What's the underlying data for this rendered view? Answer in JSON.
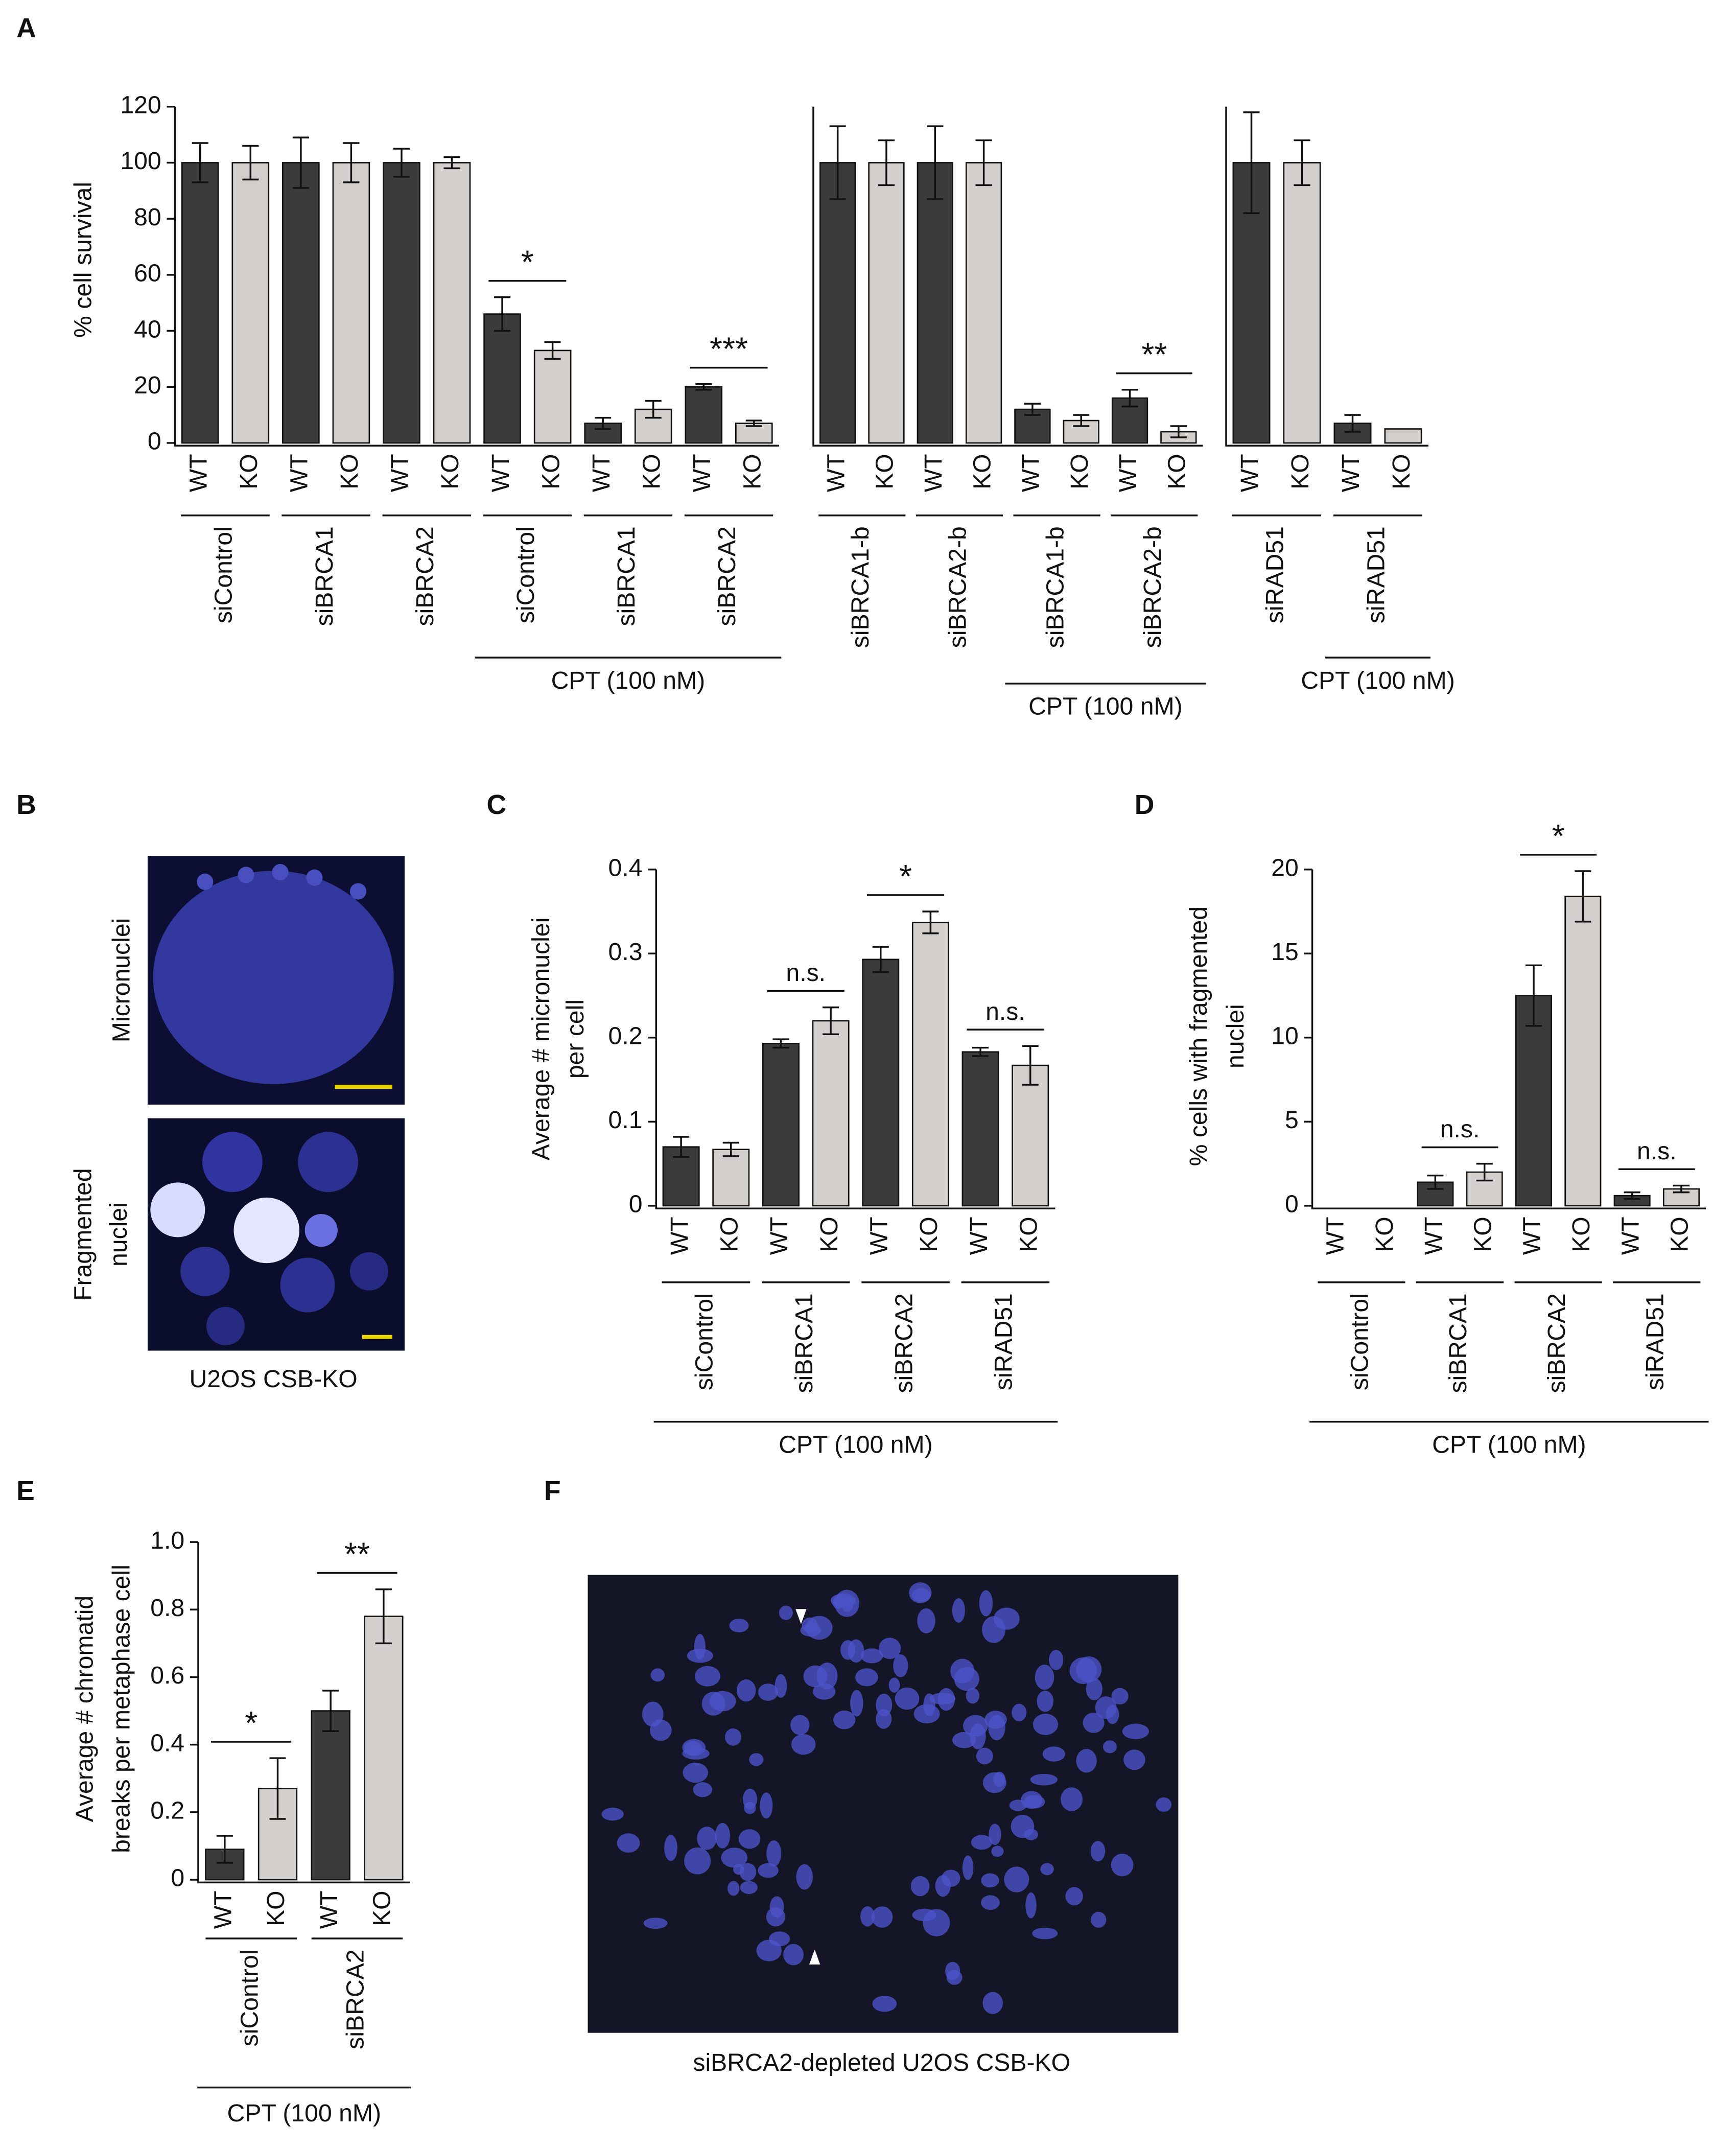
{
  "panel_labels": [
    "A",
    "B",
    "C",
    "D",
    "E",
    "F"
  ],
  "image_b": {
    "top_label": [
      "Micronuclei"
    ],
    "bottom_label": [
      "Fragmented",
      "nuclei"
    ],
    "caption": "U2OS CSB-KO"
  },
  "image_f": {
    "caption": "siBRCA2-depleted U2OS CSB-KO"
  },
  "chart_data": [
    {
      "type": "bar",
      "ylabel": [
        "% cell survival"
      ],
      "ylim": [
        0,
        120
      ],
      "yticks": [
        0,
        20,
        40,
        60,
        80,
        100,
        120
      ],
      "groups": [
        "siControl",
        "siBRCA1",
        "siBRCA2",
        "siControl",
        "siBRCA1",
        "siBRCA2"
      ],
      "series": [
        {
          "name": "WT",
          "color": "#3b3b3b",
          "values": [
            100,
            100,
            100,
            46,
            7,
            20
          ],
          "errors": [
            7,
            9,
            5,
            6,
            2,
            1
          ]
        },
        {
          "name": "KO",
          "color": "#d3cfcc",
          "values": [
            100,
            100,
            100,
            33,
            12,
            7
          ],
          "errors": [
            6,
            7,
            2,
            3,
            3,
            1
          ]
        }
      ],
      "significance": [
        {
          "group": 3,
          "label": "*"
        },
        {
          "group": 5,
          "label": "***"
        }
      ],
      "brackets": [
        {
          "label": "CPT (100 nM)",
          "groups": [
            3,
            4,
            5
          ]
        }
      ]
    },
    {
      "type": "bar",
      "ylim": [
        0,
        120
      ],
      "groups": [
        "siBRCA1-b",
        "siBRCA2-b",
        "siBRCA1-b",
        "siBRCA2-b"
      ],
      "series": [
        {
          "name": "WT",
          "color": "#3b3b3b",
          "values": [
            100,
            100,
            12,
            16
          ],
          "errors": [
            13,
            13,
            2,
            3
          ]
        },
        {
          "name": "KO",
          "color": "#d3cfcc",
          "values": [
            100,
            100,
            8,
            4
          ],
          "errors": [
            8,
            8,
            2,
            2
          ]
        }
      ],
      "significance": [
        {
          "group": 3,
          "label": "**"
        }
      ],
      "brackets": [
        {
          "label": "CPT (100 nM)",
          "groups": [
            2,
            3
          ]
        }
      ]
    },
    {
      "type": "bar",
      "ylim": [
        0,
        120
      ],
      "groups": [
        "siRAD51",
        "siRAD51"
      ],
      "series": [
        {
          "name": "WT",
          "color": "#3b3b3b",
          "values": [
            100,
            7
          ],
          "errors": [
            18,
            3
          ]
        },
        {
          "name": "KO",
          "color": "#d3cfcc",
          "values": [
            100,
            5
          ],
          "errors": [
            8,
            null
          ]
        }
      ],
      "significance": [],
      "brackets": [
        {
          "label": "CPT (100 nM)",
          "groups": [
            1
          ]
        }
      ]
    },
    {
      "type": "bar",
      "ylabel": [
        "Average # micronuclei",
        "per cell"
      ],
      "ylim": [
        0,
        0.4
      ],
      "yticks": [
        0,
        0.1,
        0.2,
        0.3,
        0.4
      ],
      "groups": [
        "siControl",
        "siBRCA1",
        "siBRCA2",
        "siRAD51"
      ],
      "series": [
        {
          "name": "WT",
          "color": "#3b3b3b",
          "values": [
            0.07,
            0.193,
            0.293,
            0.183
          ],
          "errors": [
            0.012,
            0.005,
            0.015,
            0.005
          ]
        },
        {
          "name": "KO",
          "color": "#d3cfcc",
          "values": [
            0.067,
            0.22,
            0.337,
            0.167
          ],
          "errors": [
            0.008,
            0.016,
            0.013,
            0.023
          ]
        }
      ],
      "significance": [
        {
          "group": 1,
          "label": "n.s."
        },
        {
          "group": 2,
          "label": "*"
        },
        {
          "group": 3,
          "label": "n.s."
        }
      ],
      "brackets": [
        {
          "label": "CPT (100 nM)",
          "groups": [
            0,
            1,
            2,
            3
          ]
        }
      ]
    },
    {
      "type": "bar",
      "ylabel": [
        "% cells with fragmented",
        "nuclei"
      ],
      "ylim": [
        0,
        20
      ],
      "yticks": [
        0,
        5,
        10,
        15,
        20
      ],
      "groups": [
        "siControl",
        "siBRCA1",
        "siBRCA2",
        "siRAD51"
      ],
      "series": [
        {
          "name": "WT",
          "color": "#3b3b3b",
          "values": [
            0,
            1.4,
            12.5,
            0.6
          ],
          "errors": [
            null,
            0.4,
            1.8,
            0.2
          ]
        },
        {
          "name": "KO",
          "color": "#d3cfcc",
          "values": [
            0,
            2,
            18.4,
            1
          ],
          "errors": [
            null,
            0.5,
            1.5,
            0.2
          ]
        }
      ],
      "significance": [
        {
          "group": 1,
          "label": "n.s."
        },
        {
          "group": 2,
          "label": "*"
        },
        {
          "group": 3,
          "label": "n.s."
        }
      ],
      "brackets": [
        {
          "label": "CPT (100 nM)",
          "groups": [
            0,
            1,
            2,
            3
          ]
        }
      ]
    },
    {
      "type": "bar",
      "ylabel": [
        "Average # chromatid",
        "breaks per metaphase cell"
      ],
      "ylim": [
        0,
        1
      ],
      "yticks": [
        0,
        0.2,
        0.4,
        0.6,
        0.8,
        {
          "value": 1,
          "label": "1.0"
        }
      ],
      "groups": [
        "siControl",
        "siBRCA2"
      ],
      "series": [
        {
          "name": "WT",
          "color": "#3b3b3b",
          "values": [
            0.09,
            0.5
          ],
          "errors": [
            0.04,
            0.06
          ]
        },
        {
          "name": "KO",
          "color": "#d3cfcc",
          "values": [
            0.27,
            0.78
          ],
          "errors": [
            0.09,
            0.08
          ]
        }
      ],
      "significance": [
        {
          "group": 0,
          "label": "*"
        },
        {
          "group": 1,
          "label": "**"
        }
      ],
      "brackets": [
        {
          "label": "CPT (100 nM)",
          "groups": [
            0,
            1
          ]
        }
      ]
    }
  ]
}
